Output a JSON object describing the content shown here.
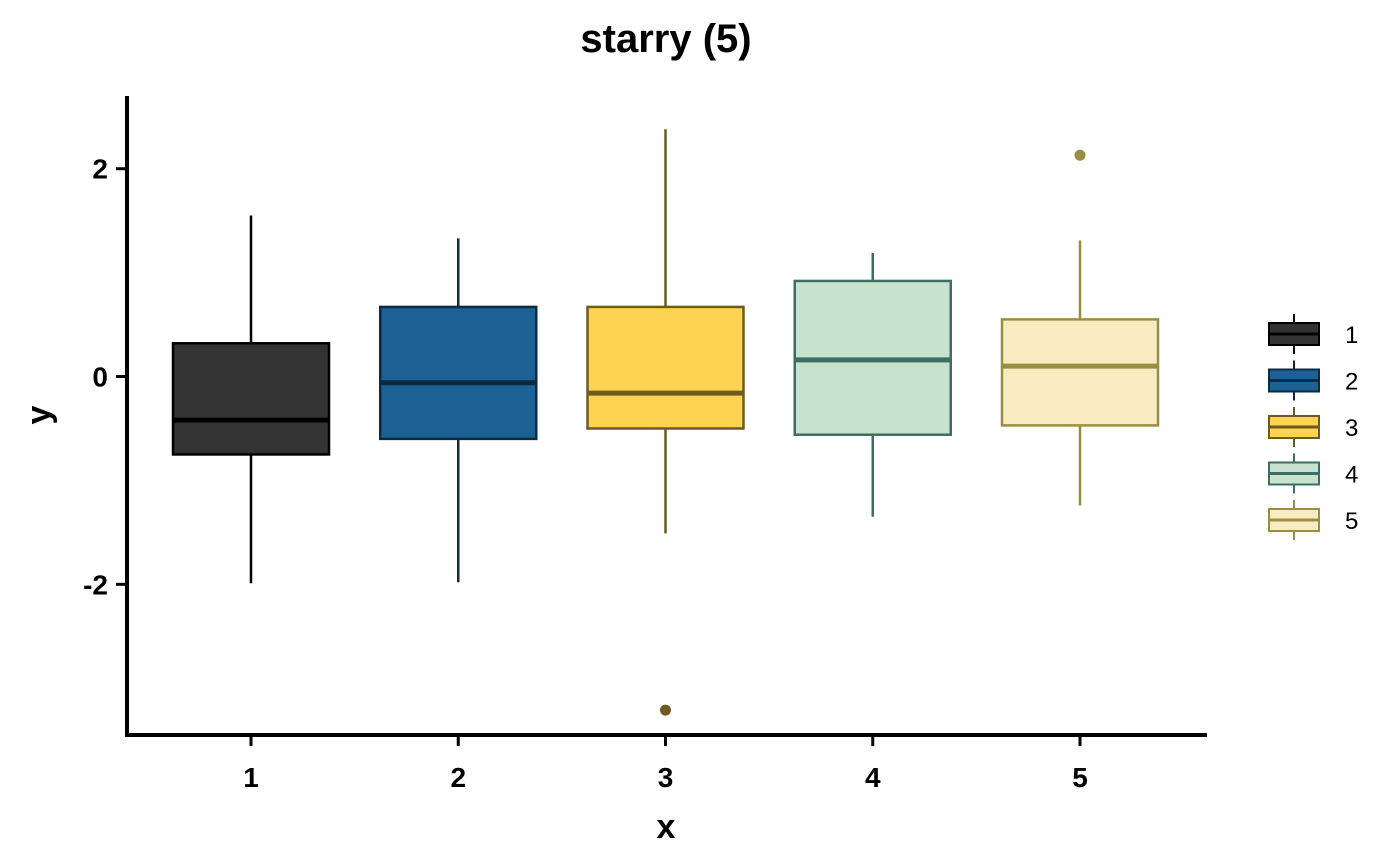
{
  "chart_data": {
    "type": "boxplot",
    "title": "starry (5)",
    "xlabel": "x",
    "ylabel": "y",
    "ylim": [
      -3.45,
      2.7
    ],
    "y_ticks": [
      -2,
      0,
      2
    ],
    "y_tick_labels": [
      "-2",
      "0",
      "2"
    ],
    "categories": [
      "1",
      "2",
      "3",
      "4",
      "5"
    ],
    "legend_position": "right",
    "series": [
      {
        "name": "1",
        "fill": "#333333",
        "stroke": "#000000",
        "whisker_low": -1.99,
        "q1": -0.75,
        "median": -0.42,
        "q3": 0.32,
        "whisker_high": 1.55,
        "outliers": []
      },
      {
        "name": "2",
        "fill": "#1B6194",
        "stroke": "#0B2B42",
        "whisker_low": -1.98,
        "q1": -0.6,
        "median": -0.06,
        "q3": 0.67,
        "whisker_high": 1.33,
        "outliers": []
      },
      {
        "name": "3",
        "fill": "#FDD351",
        "stroke": "#6E5923",
        "whisker_low": -1.51,
        "q1": -0.5,
        "median": -0.16,
        "q3": 0.67,
        "whisker_high": 2.38,
        "outliers": [
          -3.21
        ]
      },
      {
        "name": "4",
        "fill": "#C7E3CD",
        "stroke": "#3D6E66",
        "whisker_low": -1.35,
        "q1": -0.56,
        "median": 0.16,
        "q3": 0.92,
        "whisker_high": 1.19,
        "outliers": []
      },
      {
        "name": "5",
        "fill": "#F7ECC2",
        "stroke": "#9A8E42",
        "whisker_low": -1.24,
        "q1": -0.47,
        "median": 0.1,
        "q3": 0.55,
        "whisker_high": 1.31,
        "outliers": [
          2.13
        ]
      }
    ]
  }
}
